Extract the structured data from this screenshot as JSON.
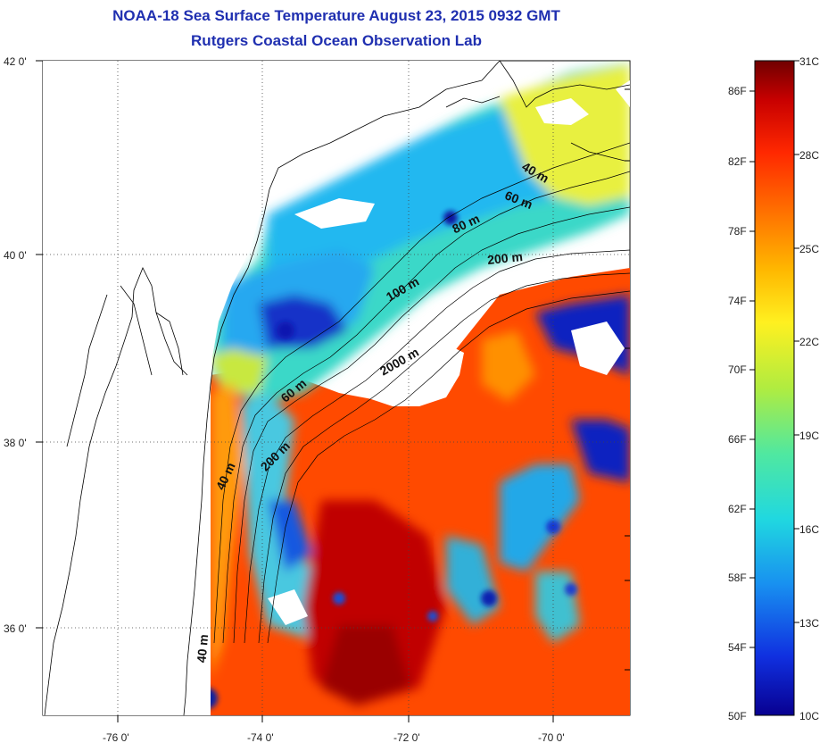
{
  "title": "NOAA-18 Sea Surface Temperature August 23, 2015 0932 GMT",
  "subtitle": "Rutgers Coastal Ocean Observation Lab",
  "map": {
    "lon_ticks": [
      "-76 0'",
      "-74 0'",
      "-72 0'",
      "-70 0'"
    ],
    "lat_ticks": [
      "42 0'",
      "40 0'",
      "38 0'",
      "36 0'"
    ]
  },
  "contour_labels": [
    "40 m",
    "60 m",
    "80 m",
    "200 m",
    "100 m",
    "2000 m",
    "60 m",
    "200 m",
    "40 m",
    "40 m"
  ],
  "colorbar": {
    "fahrenheit": [
      "86F",
      "82F",
      "78F",
      "74F",
      "70F",
      "66F",
      "62F",
      "58F",
      "54F",
      "50F"
    ],
    "celsius": [
      "31C",
      "28C",
      "25C",
      "22C",
      "19C",
      "16C",
      "13C",
      "10C"
    ],
    "colors": [
      "#7a0000",
      "#c80000",
      "#ff3000",
      "#ff8c00",
      "#ffd500",
      "#f5f530",
      "#8fe060",
      "#2fe0c0",
      "#18a0f0",
      "#1040e0",
      "#080090"
    ]
  }
}
